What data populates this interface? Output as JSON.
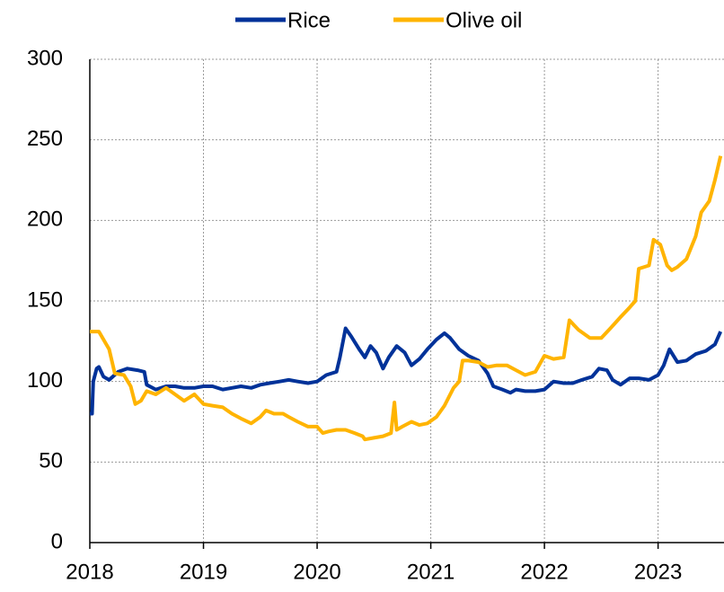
{
  "chart_data": {
    "type": "line",
    "xlim": [
      2018,
      2023.58
    ],
    "xticks": [
      2018,
      2019,
      2020,
      2021,
      2022,
      2023
    ],
    "ylim": [
      0,
      300
    ],
    "yticks": [
      0,
      50,
      100,
      150,
      200,
      250,
      300
    ],
    "grid": true,
    "legend": "top",
    "series": [
      {
        "name": "Rice",
        "color": "#003299",
        "x": [
          2018.0,
          2018.02,
          2018.03,
          2018.06,
          2018.08,
          2018.12,
          2018.17,
          2018.25,
          2018.33,
          2018.42,
          2018.48,
          2018.5,
          2018.58,
          2018.67,
          2018.75,
          2018.83,
          2018.92,
          2019.0,
          2019.08,
          2019.17,
          2019.25,
          2019.33,
          2019.42,
          2019.5,
          2019.58,
          2019.67,
          2019.75,
          2019.83,
          2019.92,
          2020.0,
          2020.08,
          2020.17,
          2020.2,
          2020.25,
          2020.3,
          2020.37,
          2020.42,
          2020.47,
          2020.52,
          2020.58,
          2020.63,
          2020.7,
          2020.77,
          2020.83,
          2020.9,
          2020.97,
          2021.05,
          2021.12,
          2021.17,
          2021.25,
          2021.33,
          2021.42,
          2021.5,
          2021.55,
          2021.63,
          2021.7,
          2021.75,
          2021.83,
          2021.92,
          2022.0,
          2022.08,
          2022.17,
          2022.25,
          2022.33,
          2022.42,
          2022.48,
          2022.55,
          2022.6,
          2022.67,
          2022.75,
          2022.83,
          2022.92,
          2023.0,
          2023.05,
          2023.1,
          2023.17,
          2023.25,
          2023.33,
          2023.42,
          2023.5,
          2023.55
        ],
        "values": [
          80,
          80,
          100,
          108,
          109,
          103,
          101,
          106,
          108,
          107,
          106,
          98,
          95,
          97,
          97,
          96,
          96,
          97,
          97,
          95,
          96,
          97,
          96,
          98,
          99,
          100,
          101,
          100,
          99,
          100,
          104,
          106,
          115,
          133,
          128,
          120,
          115,
          122,
          118,
          108,
          115,
          122,
          118,
          110,
          114,
          120,
          126,
          130,
          127,
          120,
          116,
          113,
          105,
          97,
          95,
          93,
          95,
          94,
          94,
          95,
          100,
          99,
          99,
          101,
          103,
          108,
          107,
          101,
          98,
          102,
          102,
          101,
          104,
          110,
          120,
          112,
          113,
          117,
          119,
          123,
          131
        ]
      },
      {
        "name": "Olive oil",
        "color": "#ffb400",
        "x": [
          2018.0,
          2018.08,
          2018.17,
          2018.22,
          2018.3,
          2018.36,
          2018.4,
          2018.45,
          2018.5,
          2018.58,
          2018.67,
          2018.75,
          2018.83,
          2018.92,
          2019.0,
          2019.08,
          2019.17,
          2019.25,
          2019.33,
          2019.42,
          2019.5,
          2019.55,
          2019.62,
          2019.7,
          2019.75,
          2019.83,
          2019.92,
          2020.0,
          2020.05,
          2020.1,
          2020.17,
          2020.25,
          2020.33,
          2020.4,
          2020.42,
          2020.5,
          2020.58,
          2020.65,
          2020.68,
          2020.7,
          2020.75,
          2020.83,
          2020.9,
          2020.97,
          2021.05,
          2021.12,
          2021.2,
          2021.25,
          2021.28,
          2021.33,
          2021.42,
          2021.5,
          2021.58,
          2021.67,
          2021.75,
          2021.83,
          2021.92,
          2022.0,
          2022.08,
          2022.17,
          2022.22,
          2022.3,
          2022.4,
          2022.5,
          2022.58,
          2022.67,
          2022.75,
          2022.8,
          2022.83,
          2022.92,
          2022.96,
          2023.02,
          2023.08,
          2023.12,
          2023.17,
          2023.25,
          2023.33,
          2023.38,
          2023.45,
          2023.5,
          2023.55
        ],
        "values": [
          131,
          131,
          120,
          105,
          104,
          97,
          86,
          88,
          94,
          92,
          96,
          92,
          88,
          92,
          86,
          85,
          84,
          80,
          77,
          74,
          78,
          82,
          80,
          80,
          78,
          75,
          72,
          72,
          68,
          69,
          70,
          70,
          68,
          66,
          64,
          65,
          66,
          68,
          87,
          70,
          72,
          75,
          73,
          74,
          78,
          85,
          96,
          100,
          113,
          113,
          112,
          109,
          110,
          110,
          107,
          104,
          106,
          116,
          114,
          115,
          138,
          132,
          127,
          127,
          133,
          140,
          146,
          150,
          170,
          172,
          188,
          185,
          172,
          169,
          171,
          176,
          190,
          205,
          212,
          225,
          240
        ]
      }
    ]
  }
}
